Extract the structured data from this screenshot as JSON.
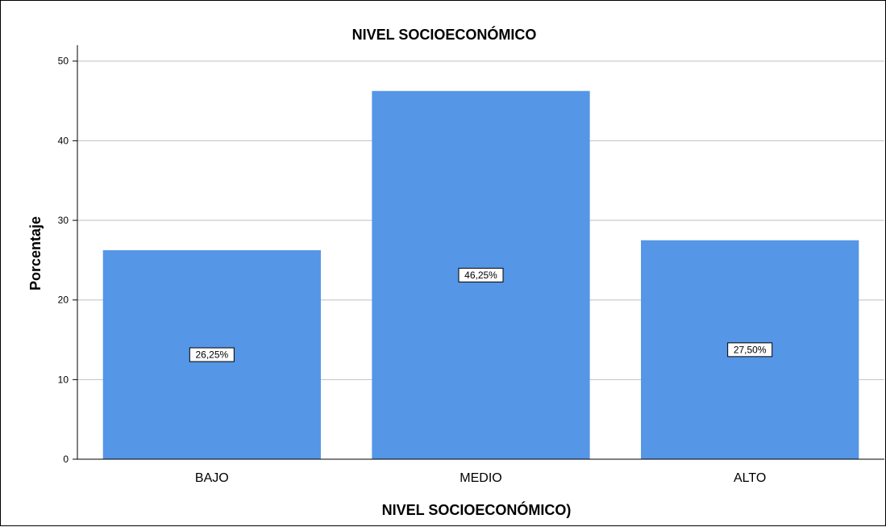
{
  "chart_data": {
    "type": "bar",
    "title": "NIVEL SOCIOECONÓMICO",
    "xlabel": "NIVEL SOCIOECONÓMICO)",
    "ylabel": "Porcentaje",
    "categories": [
      "BAJO",
      "MEDIO",
      "ALTO"
    ],
    "values": [
      26.25,
      46.25,
      27.5
    ],
    "data_labels": [
      "26,25%",
      "46,25%",
      "27,50%"
    ],
    "ylim": [
      0,
      52
    ],
    "yticks": [
      0,
      10,
      20,
      30,
      40,
      50
    ],
    "grid": true,
    "bar_color": "#5596e6"
  }
}
